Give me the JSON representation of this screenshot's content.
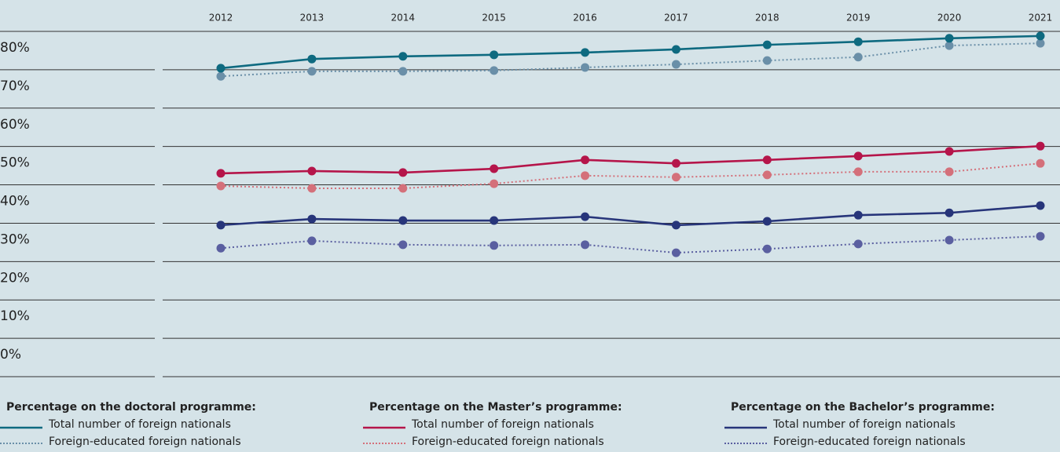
{
  "chart_data": {
    "type": "line",
    "x": [
      2012,
      2013,
      2014,
      2015,
      2016,
      2017,
      2018,
      2019,
      2020,
      2021
    ],
    "ylim": [
      -10,
      80
    ],
    "yticks": [
      {
        "value": 0,
        "label": "0%"
      },
      {
        "value": 10,
        "label": "10%"
      },
      {
        "value": 20,
        "label": "20%"
      },
      {
        "value": 30,
        "label": "30%"
      },
      {
        "value": 40,
        "label": "40%"
      },
      {
        "value": 50,
        "label": "50%"
      },
      {
        "value": 60,
        "label": "60%"
      },
      {
        "value": 70,
        "label": "70%"
      },
      {
        "value": 80,
        "label": "80%"
      }
    ],
    "grid": true,
    "groups": [
      {
        "title": "Percentage on the doctoral programme:",
        "series": [
          {
            "name": "Total number of foreign nationals",
            "color": "#0e6a80",
            "style": "solid",
            "values": [
              70.4,
              72.8,
              73.5,
              73.9,
              74.5,
              75.3,
              76.5,
              77.3,
              78.2,
              78.8
            ]
          },
          {
            "name": "Foreign-educated foreign nationals",
            "color": "#6a8fa8",
            "style": "dotted",
            "values": [
              68.3,
              69.6,
              69.6,
              69.8,
              70.6,
              71.4,
              72.4,
              73.3,
              76.3,
              76.9
            ]
          }
        ]
      },
      {
        "title": "Percentage on the Master’s programme:",
        "series": [
          {
            "name": "Total number of foreign nationals",
            "color": "#b5154a",
            "style": "solid",
            "values": [
              43.0,
              43.6,
              43.2,
              44.2,
              46.5,
              45.6,
              46.5,
              47.5,
              48.7,
              50.1
            ]
          },
          {
            "name": "Foreign-educated foreign nationals",
            "color": "#d4707a",
            "style": "dotted",
            "values": [
              39.7,
              39.1,
              39.1,
              40.3,
              42.4,
              42.0,
              42.6,
              43.4,
              43.4,
              45.6
            ]
          }
        ]
      },
      {
        "title": "Percentage on the Bachelor’s programme:",
        "series": [
          {
            "name": "Total number of foreign nationals",
            "color": "#27357a",
            "style": "solid",
            "values": [
              29.5,
              31.1,
              30.7,
              30.7,
              31.7,
              29.5,
              30.5,
              32.1,
              32.7,
              34.6
            ]
          },
          {
            "name": "Foreign-educated foreign nationals",
            "color": "#5a5fa0",
            "style": "dotted",
            "values": [
              23.5,
              25.4,
              24.4,
              24.2,
              24.4,
              22.3,
              23.3,
              24.6,
              25.6,
              26.6
            ]
          }
        ]
      }
    ]
  }
}
